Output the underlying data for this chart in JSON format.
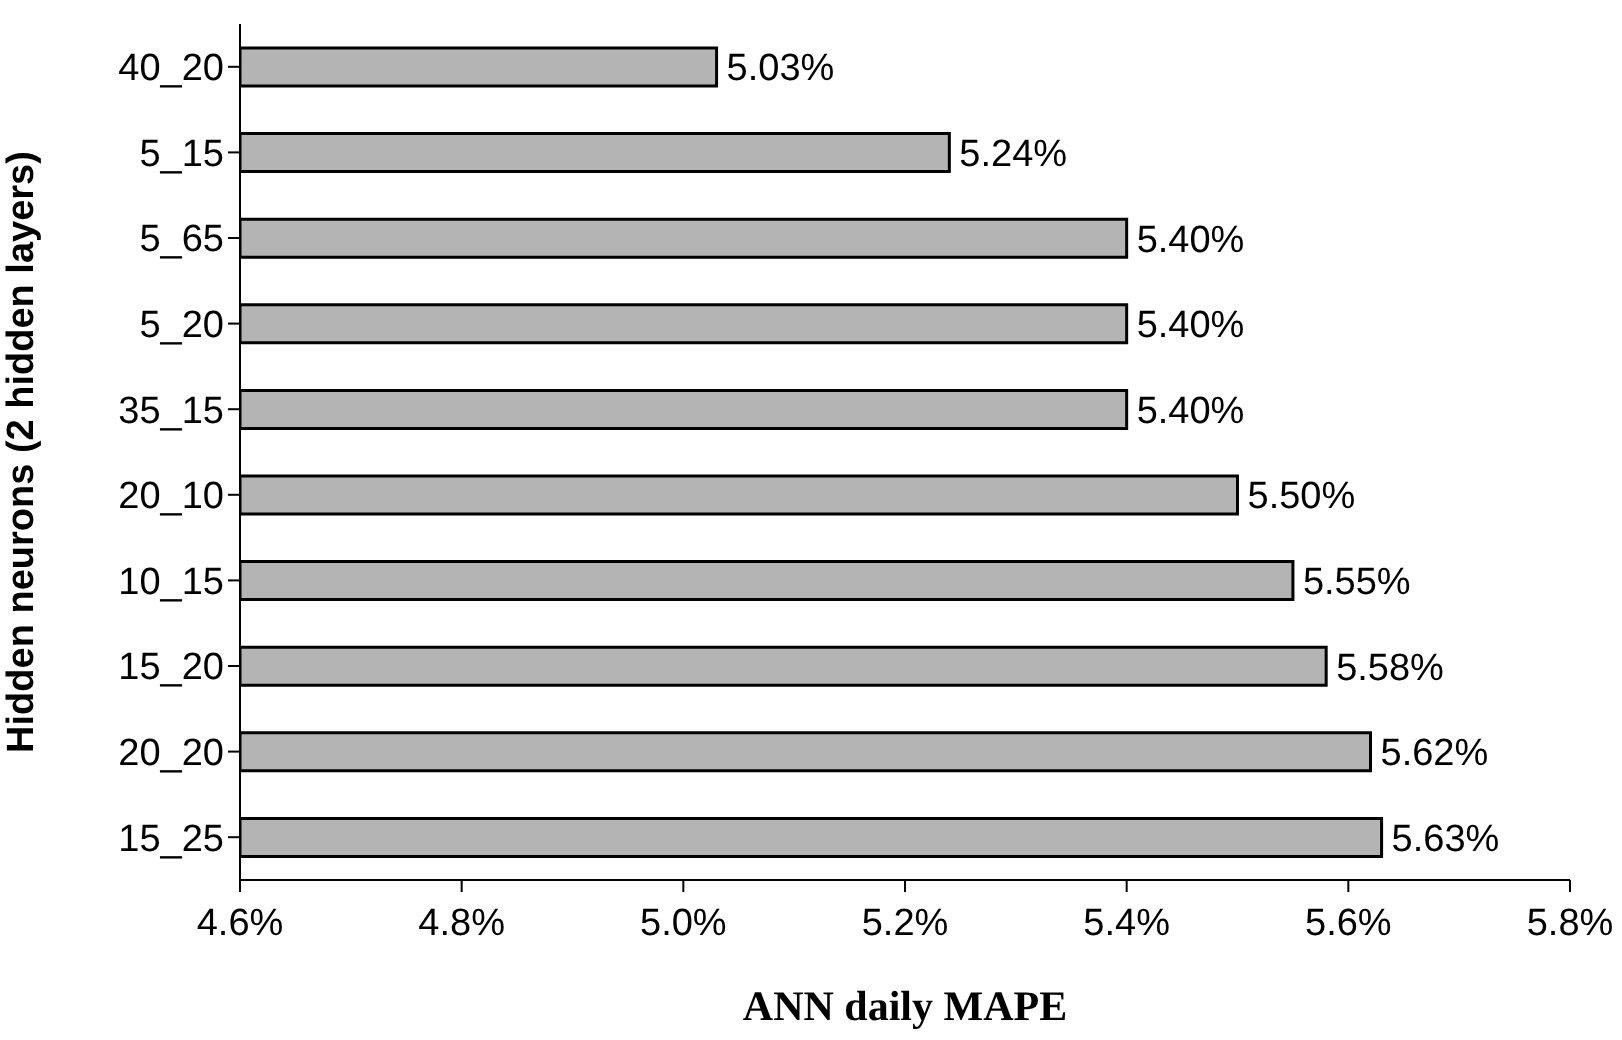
{
  "chart_data": {
    "type": "bar",
    "orientation": "horizontal",
    "xlabel": "ANN daily MAPE",
    "ylabel": "Hidden neurons (2 hidden layers)",
    "categories": [
      "40_20",
      "5_15",
      "5_65",
      "5_20",
      "35_15",
      "20_10",
      "10_15",
      "15_20",
      "20_20",
      "15_25"
    ],
    "values": [
      5.03,
      5.24,
      5.4,
      5.4,
      5.4,
      5.5,
      5.55,
      5.58,
      5.62,
      5.63
    ],
    "value_labels": [
      "5.03%",
      "5.24%",
      "5.40%",
      "5.40%",
      "5.40%",
      "5.50%",
      "5.55%",
      "5.58%",
      "5.62%",
      "5.63%"
    ],
    "color": "#b4b4b4",
    "xlim": [
      4.6,
      5.8
    ],
    "xticks": [
      {
        "value": 4.6,
        "label": "4.6%"
      },
      {
        "value": 4.8,
        "label": "4.8%"
      },
      {
        "value": 5.0,
        "label": "5.0%"
      },
      {
        "value": 5.2,
        "label": "5.2%"
      },
      {
        "value": 5.4,
        "label": "5.4%"
      },
      {
        "value": 5.6,
        "label": "5.6%"
      },
      {
        "value": 5.8,
        "label": "5.8%"
      }
    ],
    "grid": false,
    "legend": false
  }
}
